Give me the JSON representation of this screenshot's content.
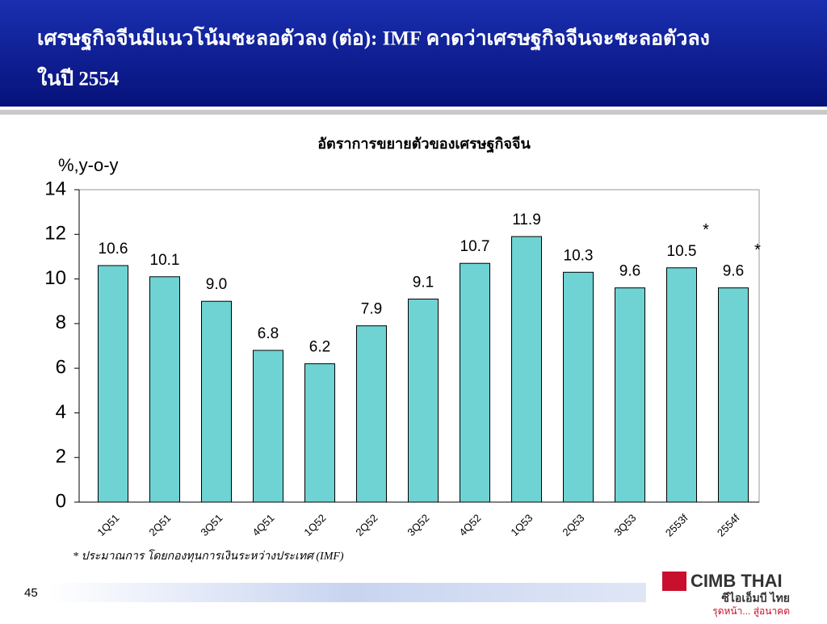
{
  "header": {
    "title_line1": "เศรษฐกิจจีนมีแนวโน้มชะลอตัวลง (ต่อ): IMF คาดว่าเศรษฐกิจจีนจะชะลอตัวลง",
    "title_line2": "ในปี 2554"
  },
  "chart_data": {
    "type": "bar",
    "title": "อัตราการขยายตัวของเศรษฐกิจจีน",
    "y_label": "%,y-o-y",
    "categories": [
      "1Q51",
      "2Q51",
      "3Q51",
      "4Q51",
      "1Q52",
      "2Q52",
      "3Q52",
      "4Q52",
      "1Q53",
      "2Q53",
      "3Q53",
      "2553f",
      "2554f"
    ],
    "values": [
      10.6,
      10.1,
      9.0,
      6.8,
      6.2,
      7.9,
      9.1,
      10.7,
      11.9,
      10.3,
      9.6,
      10.5,
      9.6
    ],
    "value_labels": [
      "10.6",
      "10.1",
      "9.0",
      "6.8",
      "6.2",
      "7.9",
      "9.1",
      "10.7",
      "11.9",
      "10.3",
      "9.6",
      "10.5",
      "9.6"
    ],
    "annotations": [
      "*",
      "*"
    ],
    "color": "#6fd3d3",
    "ylim": [
      0,
      14
    ],
    "yticks": [
      0,
      2,
      4,
      6,
      8,
      10,
      12,
      14
    ],
    "grid": false
  },
  "footnote": "* ประมาณการ โดยกองทุนการเงินระหว่างประเทศ (IMF)",
  "page_number": "45",
  "logo": {
    "name": "CIMB THAI",
    "thai_name": "ซีไอเอ็มบี ไทย",
    "slogan": "รุดหน้า... สู่อนาคต"
  }
}
